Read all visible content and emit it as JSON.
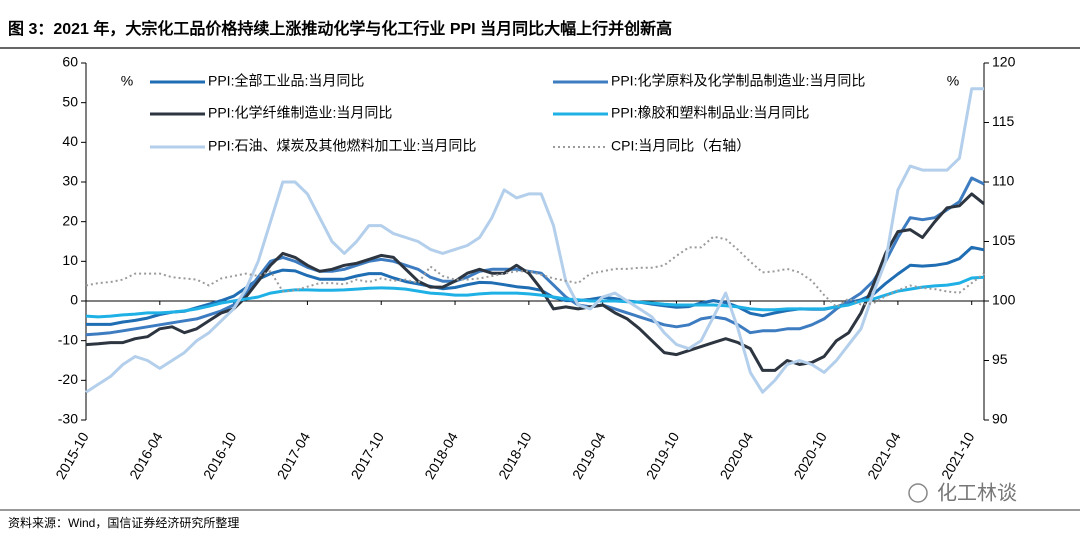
{
  "chart_data": {
    "type": "line",
    "title": "图 3：2021 年，大宗化工品价格持续上涨推动化学与化工行业 PPI 当月同比大幅上行并创新高",
    "source": "资料来源：Wind，国信证券经济研究所整理",
    "watermark": "化工林谈",
    "ylabel": "%",
    "y2label": "%",
    "categories": [
      "2015-10",
      null,
      null,
      null,
      null,
      null,
      "2016-04",
      null,
      null,
      null,
      null,
      null,
      "2016-10",
      null,
      null,
      null,
      null,
      null,
      "2017-04",
      null,
      null,
      null,
      null,
      null,
      "2017-10",
      null,
      null,
      null,
      null,
      null,
      "2018-04",
      null,
      null,
      null,
      null,
      null,
      "2018-10",
      null,
      null,
      null,
      null,
      null,
      "2019-04",
      null,
      null,
      null,
      null,
      null,
      "2019-10",
      null,
      null,
      null,
      null,
      null,
      "2020-04",
      null,
      null,
      null,
      null,
      null,
      "2020-10",
      null,
      null,
      null,
      null,
      null,
      "2021-04",
      null,
      null,
      null,
      null,
      null,
      "2021-10",
      null
    ],
    "ylim": [
      -30,
      60
    ],
    "yticks": [
      -30,
      -20,
      -10,
      0,
      10,
      20,
      30,
      40,
      50,
      60
    ],
    "y2lim": [
      90,
      120
    ],
    "y2ticks": [
      90,
      95,
      100,
      105,
      110,
      115,
      120
    ],
    "grid": false,
    "series": [
      {
        "name": "PPI:全部工业品:当月同比",
        "color": "#1f6db3",
        "values": [
          -5.9,
          -5.9,
          -5.9,
          -5.3,
          -4.9,
          -4.3,
          -3.4,
          -2.8,
          -2.6,
          -1.7,
          -0.8,
          0.1,
          1.2,
          3.3,
          5.5,
          6.9,
          7.8,
          7.6,
          6.4,
          5.5,
          5.5,
          5.5,
          6.3,
          6.9,
          6.9,
          5.8,
          4.9,
          4.3,
          3.7,
          3.1,
          3.4,
          4.1,
          4.7,
          4.6,
          4.1,
          3.6,
          3.3,
          2.7,
          0.9,
          0.1,
          0.1,
          0.4,
          0.9,
          0.6,
          0,
          -0.3,
          -0.8,
          -1.2,
          -1.6,
          -1.4,
          -0.5,
          0.1,
          -0.4,
          -1.5,
          -3.1,
          -3.7,
          -3,
          -2.4,
          -2,
          -2.1,
          -2.1,
          -1.5,
          -0.4,
          0.3,
          1.7,
          4.4,
          6.8,
          9,
          8.8,
          9,
          9.5,
          10.7,
          13.5,
          12.9
        ]
      },
      {
        "name": "PPI:化学原料及化学制品制造业:当月同比",
        "color": "#3d7cc0",
        "values": [
          -8.5,
          -8.3,
          -8,
          -7.5,
          -7,
          -6.5,
          -6,
          -5.5,
          -5,
          -4.5,
          -3.5,
          -2.5,
          -1,
          2,
          6,
          10,
          11,
          10,
          8.5,
          7.5,
          7.5,
          8,
          9,
          10,
          10.5,
          10,
          9,
          8,
          6,
          5,
          5,
          6,
          7.5,
          8,
          8,
          8,
          7.5,
          7,
          4,
          1,
          -1,
          -1.5,
          -1,
          -2,
          -3,
          -4,
          -5,
          -6,
          -6.5,
          -6,
          -4.5,
          -4,
          -4.5,
          -6,
          -8,
          -7.5,
          -7.5,
          -7,
          -7,
          -6,
          -4.5,
          -2,
          0,
          2,
          5,
          10,
          16,
          21,
          20.5,
          21,
          23,
          25,
          31,
          29.5
        ]
      },
      {
        "name": "PPI:化学纤维制造业:当月同比",
        "color": "#2d3540",
        "values": [
          -11,
          -10.8,
          -10.5,
          -10.5,
          -9.5,
          -9,
          -7,
          -6.5,
          -8,
          -7,
          -5,
          -3,
          -2,
          1,
          5,
          9,
          12,
          11,
          9,
          7.5,
          8,
          9,
          9.5,
          10.5,
          11.5,
          11,
          8,
          5,
          3.5,
          3.5,
          5,
          7,
          8,
          7,
          7,
          9,
          7,
          3,
          -2,
          -1.5,
          -2,
          -1.5,
          -1,
          -3,
          -4.5,
          -7,
          -10,
          -13,
          -13.5,
          -12.5,
          -11.5,
          -10.5,
          -9.5,
          -10.5,
          -12,
          -17.5,
          -17.5,
          -15,
          -16,
          -15.5,
          -14,
          -10,
          -8,
          -3,
          4,
          12,
          17.5,
          18,
          16,
          20,
          23.5,
          24,
          27,
          24.5
        ]
      },
      {
        "name": "PPI:橡胶和塑料制品业:当月同比",
        "color": "#1fb1e6",
        "values": [
          -3.8,
          -4,
          -3.8,
          -3.5,
          -3.3,
          -3,
          -3,
          -2.8,
          -2.5,
          -2,
          -1.3,
          -0.5,
          0,
          0.5,
          1,
          2,
          2.5,
          2.8,
          2.8,
          2.7,
          2.7,
          2.8,
          3,
          3.2,
          3.3,
          3.2,
          3,
          2.5,
          2,
          1.8,
          1.5,
          1.5,
          1.8,
          2,
          2,
          2,
          1.8,
          1.5,
          1,
          0.5,
          0.3,
          0,
          0,
          0,
          -0.2,
          -0.3,
          -0.5,
          -0.8,
          -1,
          -1,
          -1,
          -1,
          -1.2,
          -1.5,
          -2,
          -2.2,
          -2.2,
          -2,
          -2,
          -2,
          -2,
          -1.5,
          -1,
          0,
          0.5,
          1.5,
          2.5,
          3,
          3.5,
          3.8,
          4,
          4.5,
          5.8,
          6
        ]
      },
      {
        "name": "PPI:石油、煤炭及其他燃料加工业:当月同比",
        "color": "#b3cfeb",
        "values": [
          -23,
          -21,
          -19,
          -16,
          -14,
          -15,
          -17,
          -15,
          -13,
          -10,
          -8,
          -5,
          -2,
          3,
          10,
          20,
          30,
          30,
          27,
          21,
          15,
          12,
          15,
          19,
          19,
          17,
          16,
          15,
          13,
          12,
          13,
          14,
          16,
          21,
          28,
          26,
          27,
          27,
          19,
          5,
          -1,
          -2,
          1,
          2,
          0,
          -2,
          -4,
          -8,
          -11,
          -12,
          -10,
          -4,
          2,
          -7,
          -18,
          -23,
          -20,
          -16,
          -15,
          -16,
          -18,
          -15,
          -11,
          -7,
          2,
          10,
          28,
          34,
          33,
          33,
          33,
          36,
          53.5,
          53.5
        ]
      },
      {
        "name": "CPI:当月同比（右轴）",
        "color": "#9a9a9a",
        "axis": "y2",
        "line_style": "dotted",
        "values": [
          101.3,
          101.5,
          101.6,
          101.8,
          102.3,
          102.3,
          102.3,
          102,
          101.9,
          101.8,
          101.3,
          101.9,
          102.1,
          102.3,
          102.1,
          102.5,
          100.8,
          100.9,
          101.2,
          101.5,
          101.5,
          101.4,
          101.8,
          101.6,
          101.9,
          101.7,
          101.8,
          101.5,
          102.9,
          102.1,
          101.8,
          101.8,
          101.9,
          102.1,
          102.3,
          102.5,
          102.5,
          102.2,
          101.9,
          101.7,
          101.5,
          102.3,
          102.5,
          102.7,
          102.7,
          102.8,
          102.8,
          103,
          103.8,
          104.5,
          104.5,
          105.4,
          105.2,
          104.3,
          103.3,
          102.4,
          102.5,
          102.7,
          102.4,
          101.7,
          100.5,
          99.5,
          100.2,
          99.7,
          99.8,
          100.4,
          100.9,
          101.3,
          101.1,
          101,
          100.8,
          100.7,
          101.5,
          102.3
        ]
      }
    ]
  }
}
